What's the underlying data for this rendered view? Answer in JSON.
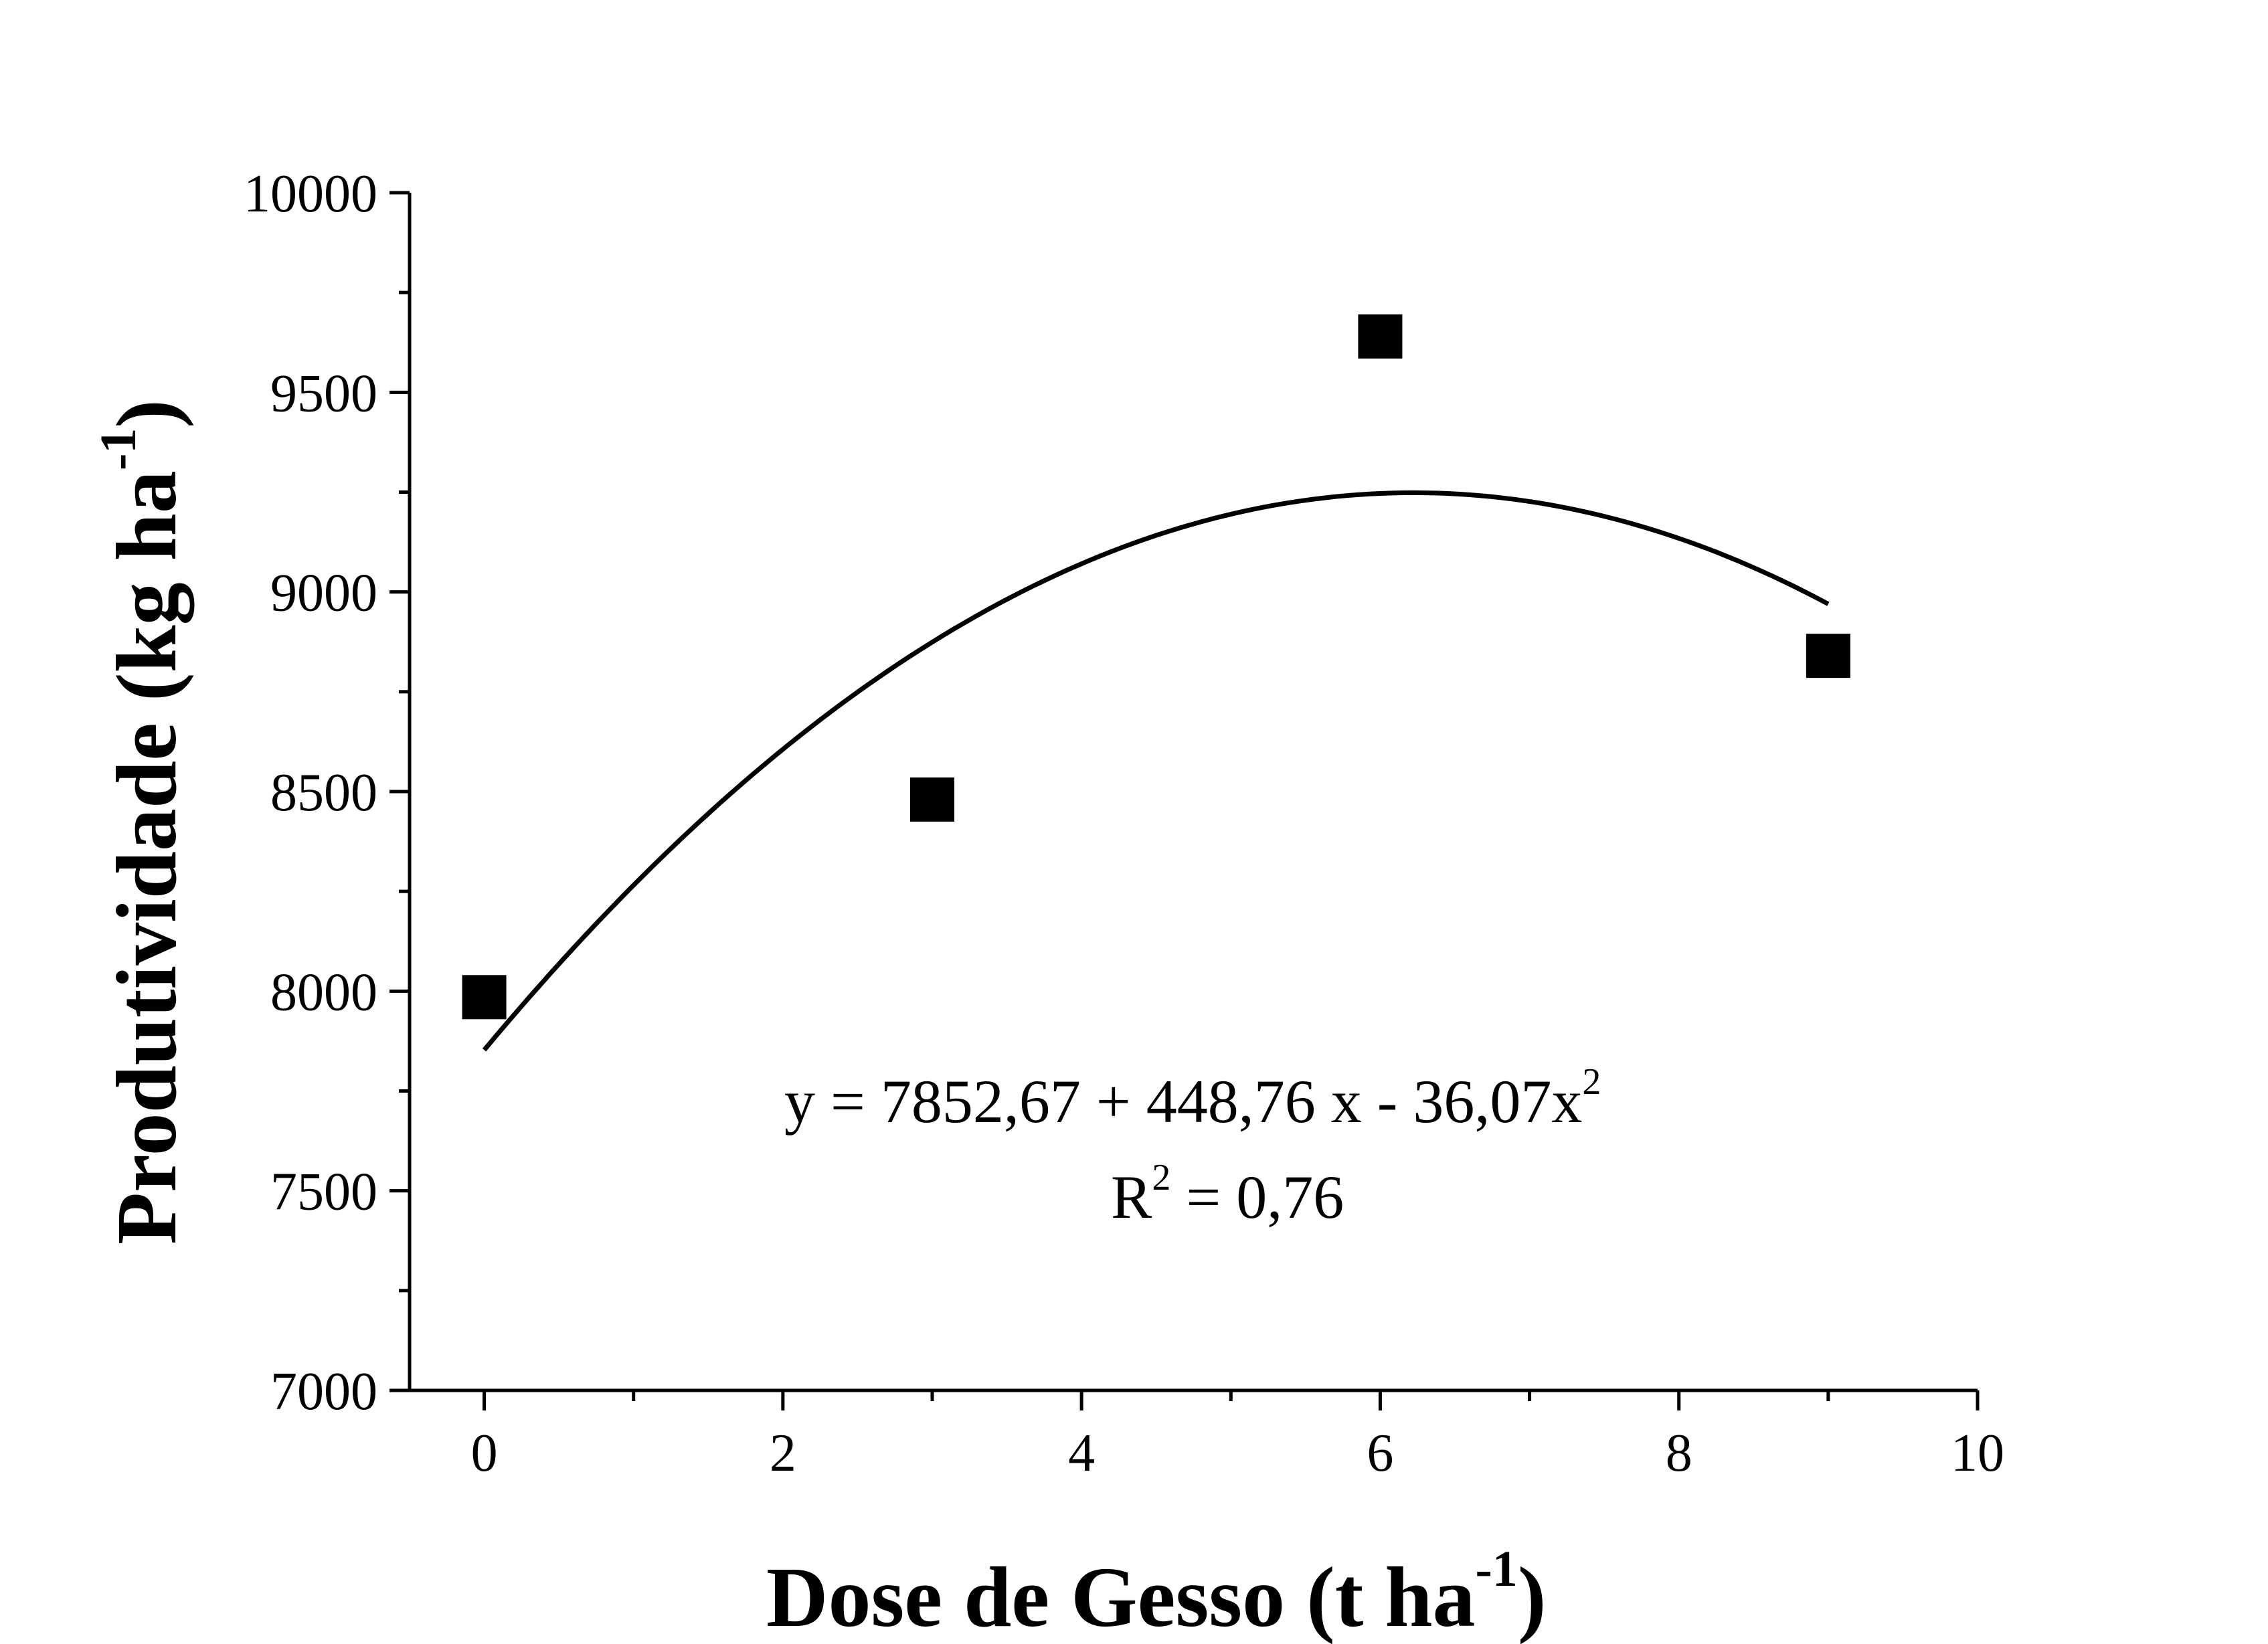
{
  "chart_data": {
    "type": "scatter",
    "xlabel": {
      "main": "Dose de Gesso (t ha",
      "sup": "-1",
      "close": ")"
    },
    "ylabel": {
      "main": "Produtividade (kg ha",
      "sup": "-1",
      "close": ")"
    },
    "xlim": [
      -0.5,
      10
    ],
    "ylim": [
      7000,
      10000
    ],
    "x_ticks": [
      0,
      2,
      4,
      6,
      8,
      10
    ],
    "x_tick_labels": [
      "0",
      "2",
      "4",
      "6",
      "8",
      "10"
    ],
    "y_ticks": [
      7000,
      7500,
      8000,
      8500,
      9000,
      9500,
      10000
    ],
    "y_tick_labels": [
      "7000",
      "7500",
      "8000",
      "8500",
      "9000",
      "9500",
      "10000"
    ],
    "x_minor_ticks": [
      1,
      3,
      5,
      7,
      9
    ],
    "y_minor_ticks": [
      7250,
      7750,
      8250,
      8750,
      9250,
      9750
    ],
    "series": [
      {
        "marker": "square",
        "color": "#000000",
        "points": [
          {
            "x": 0,
            "y": 7985
          },
          {
            "x": 3,
            "y": 8480
          },
          {
            "x": 6,
            "y": 9640
          },
          {
            "x": 9,
            "y": 8840
          }
        ]
      }
    ],
    "fit": {
      "type": "quadratic",
      "coefficients": [
        7852.67,
        448.76,
        -36.07
      ],
      "x_range": [
        0,
        9
      ],
      "color": "#000000"
    },
    "annotations": {
      "equation": {
        "main": "y = 7852,67 + 448,76 x - 36,07x",
        "sup": "2"
      },
      "r2": {
        "pre": "R",
        "sup": "2",
        "post": " = 0,76"
      }
    },
    "grid": false,
    "legend": "none"
  }
}
